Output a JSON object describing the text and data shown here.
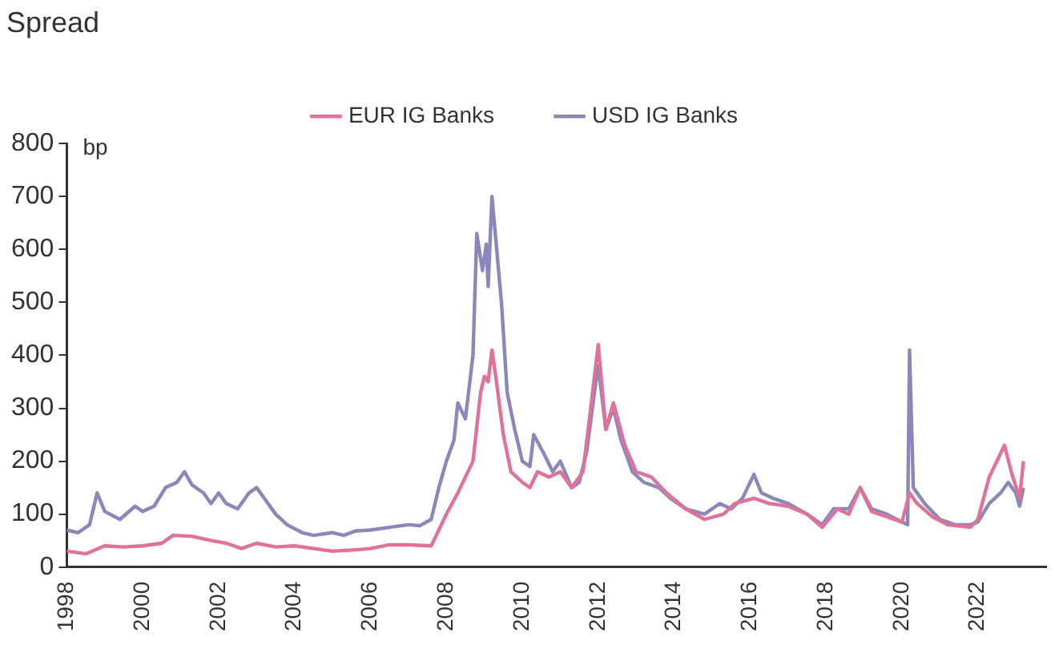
{
  "chart_data": {
    "type": "line",
    "title": "Spread",
    "ylabel": "bp",
    "xlim": [
      1998,
      2023.8
    ],
    "xticks": [
      1998,
      2000,
      2002,
      2004,
      2006,
      2008,
      2010,
      2012,
      2014,
      2016,
      2018,
      2020,
      2022
    ],
    "ylim": [
      0,
      800
    ],
    "yticks": [
      0,
      100,
      200,
      300,
      400,
      500,
      600,
      700,
      800
    ],
    "grid": false,
    "legend": "top",
    "marker": "none",
    "line_style": "solid",
    "series": [
      {
        "name": "EUR IG Banks",
        "color": "#e0729a",
        "x": [
          1998.0,
          1998.5,
          1999.0,
          1999.5,
          2000.0,
          2000.5,
          2000.8,
          2001.3,
          2001.8,
          2002.2,
          2002.6,
          2003.0,
          2003.5,
          2004.0,
          2004.5,
          2005.0,
          2005.5,
          2006.0,
          2006.5,
          2007.0,
          2007.6,
          2007.8,
          2008.0,
          2008.3,
          2008.5,
          2008.7,
          2008.9,
          2009.0,
          2009.1,
          2009.2,
          2009.3,
          2009.5,
          2009.7,
          2010.0,
          2010.2,
          2010.4,
          2010.7,
          2011.0,
          2011.3,
          2011.6,
          2011.9,
          2012.0,
          2012.2,
          2012.4,
          2012.7,
          2013.0,
          2013.4,
          2013.8,
          2014.3,
          2014.8,
          2015.3,
          2015.6,
          2016.1,
          2016.5,
          2017.0,
          2017.5,
          2017.9,
          2018.3,
          2018.6,
          2018.9,
          2019.2,
          2019.6,
          2020.0,
          2020.2,
          2020.4,
          2020.8,
          2021.2,
          2021.8,
          2022.0,
          2022.3,
          2022.5,
          2022.7,
          2022.9,
          2023.1,
          2023.2
        ],
        "values": [
          30,
          25,
          40,
          38,
          40,
          45,
          60,
          58,
          50,
          45,
          35,
          45,
          38,
          40,
          35,
          30,
          32,
          35,
          42,
          42,
          40,
          70,
          100,
          140,
          170,
          200,
          330,
          360,
          350,
          410,
          360,
          250,
          180,
          160,
          150,
          180,
          170,
          180,
          150,
          180,
          360,
          420,
          260,
          310,
          230,
          180,
          170,
          140,
          110,
          90,
          100,
          120,
          130,
          120,
          115,
          100,
          75,
          110,
          100,
          150,
          105,
          95,
          85,
          140,
          120,
          95,
          80,
          75,
          90,
          170,
          200,
          230,
          175,
          130,
          200
        ]
      },
      {
        "name": "USD IG Banks",
        "color": "#8a88ba",
        "x": [
          1998.0,
          1998.3,
          1998.6,
          1998.8,
          1999.0,
          1999.4,
          1999.8,
          2000.0,
          2000.3,
          2000.6,
          2000.9,
          2001.1,
          2001.3,
          2001.6,
          2001.8,
          2002.0,
          2002.2,
          2002.5,
          2002.8,
          2003.0,
          2003.2,
          2003.5,
          2003.8,
          2004.2,
          2004.5,
          2005.0,
          2005.3,
          2005.6,
          2006.0,
          2006.5,
          2007.0,
          2007.3,
          2007.6,
          2007.8,
          2008.0,
          2008.2,
          2008.3,
          2008.5,
          2008.7,
          2008.8,
          2008.95,
          2009.05,
          2009.1,
          2009.2,
          2009.3,
          2009.45,
          2009.6,
          2009.8,
          2010.0,
          2010.2,
          2010.3,
          2010.6,
          2010.8,
          2011.0,
          2011.3,
          2011.5,
          2011.7,
          2011.9,
          2012.0,
          2012.2,
          2012.4,
          2012.6,
          2012.9,
          2013.2,
          2013.6,
          2013.9,
          2014.3,
          2014.8,
          2015.2,
          2015.5,
          2015.8,
          2016.1,
          2016.3,
          2016.6,
          2017.0,
          2017.5,
          2017.9,
          2018.2,
          2018.6,
          2018.9,
          2019.2,
          2019.6,
          2020.0,
          2020.15,
          2020.2,
          2020.3,
          2020.6,
          2021.0,
          2021.4,
          2021.8,
          2022.0,
          2022.3,
          2022.6,
          2022.8,
          2023.0,
          2023.1,
          2023.2
        ],
        "values": [
          70,
          65,
          80,
          140,
          105,
          90,
          115,
          105,
          115,
          150,
          160,
          180,
          155,
          140,
          120,
          140,
          120,
          110,
          140,
          150,
          130,
          100,
          80,
          65,
          60,
          65,
          60,
          68,
          70,
          75,
          80,
          78,
          90,
          150,
          200,
          240,
          310,
          280,
          400,
          630,
          560,
          610,
          530,
          700,
          620,
          500,
          330,
          260,
          200,
          190,
          250,
          210,
          180,
          200,
          150,
          160,
          220,
          330,
          380,
          260,
          300,
          240,
          180,
          160,
          150,
          130,
          110,
          100,
          120,
          110,
          130,
          175,
          140,
          130,
          120,
          100,
          80,
          110,
          110,
          150,
          110,
          100,
          85,
          80,
          410,
          150,
          120,
          90,
          80,
          80,
          85,
          120,
          140,
          160,
          140,
          115,
          150
        ]
      }
    ]
  }
}
